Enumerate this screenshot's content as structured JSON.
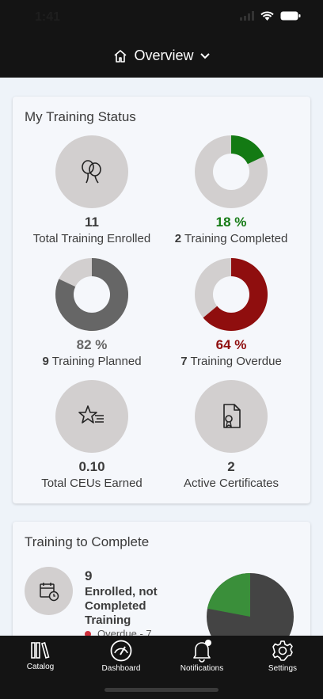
{
  "status_bar": {
    "time": "1:41"
  },
  "header": {
    "title": "Overview"
  },
  "my_training_status": {
    "title": "My Training Status",
    "total_enrolled": {
      "value": "11",
      "label": "Total Training Enrolled"
    },
    "completed": {
      "percent": "18 %",
      "count": "2",
      "label": "Training Completed",
      "fraction": 0.18,
      "color": "#137a13"
    },
    "planned": {
      "percent": "82 %",
      "count": "9",
      "label": "Training Planned",
      "fraction": 0.82,
      "color": "#666666"
    },
    "overdue": {
      "percent": "64 %",
      "count": "7",
      "label": "Training Overdue",
      "fraction": 0.64,
      "color": "#8f0e0e"
    },
    "ceus": {
      "value": "0.10",
      "label": "Total CEUs Earned"
    },
    "certificates": {
      "value": "2",
      "label": "Active Certificates"
    }
  },
  "training_to_complete": {
    "title": "Training to Complete",
    "count": "9",
    "label": "Enrolled, not Completed Training",
    "legend_overdue": "Overdue - 7",
    "pie_green_fraction": 0.22
  },
  "tabs": [
    {
      "label": "Catalog",
      "icon": "books-icon"
    },
    {
      "label": "Dashboard",
      "icon": "gauge-icon"
    },
    {
      "label": "Notifications",
      "icon": "bell-icon"
    },
    {
      "label": "Settings",
      "icon": "gear-icon"
    }
  ]
}
